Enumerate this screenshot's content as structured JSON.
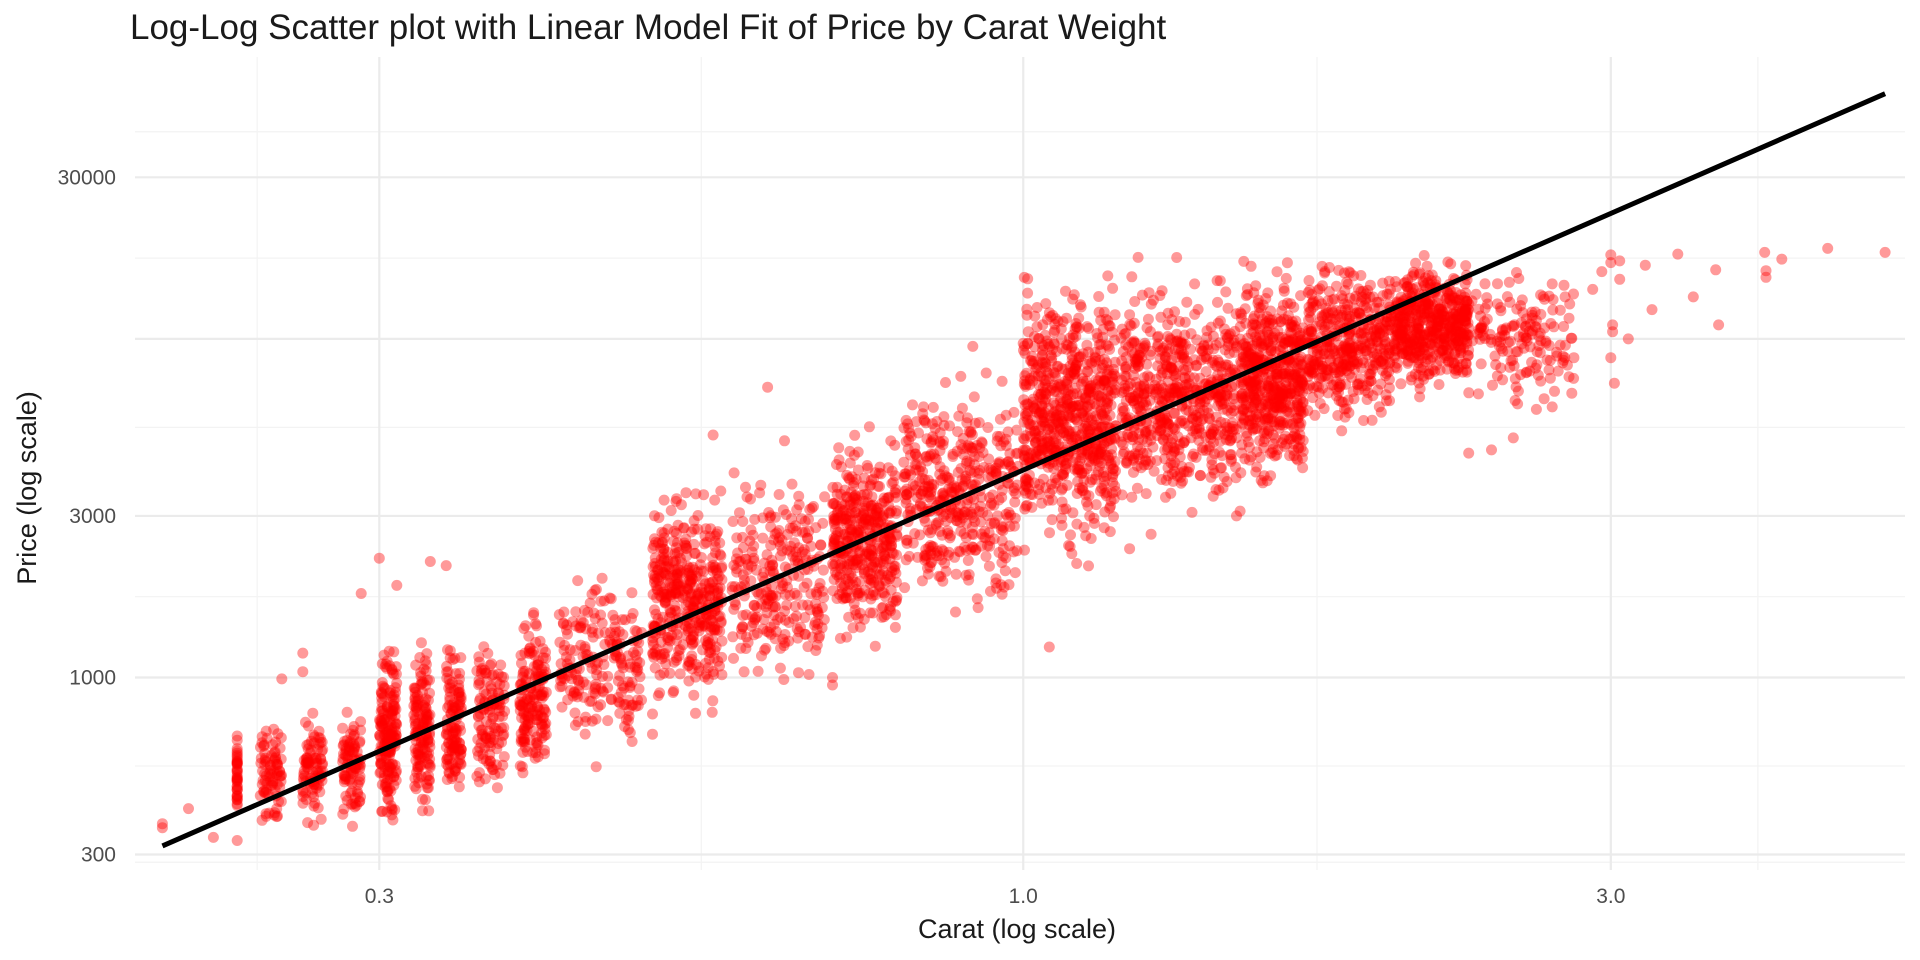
{
  "colors": {
    "points": "#ff0000",
    "fit_line": "#000000",
    "grid_major": "#ebebeb",
    "grid_minor": "#f3f3f3"
  },
  "chart_data": {
    "type": "scatter",
    "title": "Log-Log Scatter plot with Linear Model Fit of Price by Carat Weight",
    "xlabel": "Carat (log scale)",
    "ylabel": "Price (log scale)",
    "x_scale": "log10",
    "y_scale": "log10",
    "xlim": [
      0.19,
      5.2
    ],
    "ylim": [
      270,
      68000
    ],
    "x_ticks": [
      0.3,
      1.0,
      3.0
    ],
    "x_tick_labels": [
      "0.3",
      "1.0",
      "3.0"
    ],
    "y_ticks": [
      300,
      1000,
      3000,
      30000
    ],
    "y_tick_labels": [
      "300",
      "1000",
      "3000",
      "30000"
    ],
    "grid": true,
    "point_alpha": 0.4,
    "series": [
      {
        "type": "scatter",
        "clusters": [
          {
            "x": [
              0.23,
              0.23
            ],
            "y": [
              345,
              740
            ],
            "n": 40
          },
          {
            "x": [
              0.24,
              0.25
            ],
            "y": [
              340,
              800
            ],
            "n": 80
          },
          {
            "x": [
              0.26,
              0.27
            ],
            "y": [
              340,
              860
            ],
            "n": 90
          },
          {
            "x": [
              0.28,
              0.29
            ],
            "y": [
              340,
              880
            ],
            "n": 90
          },
          {
            "x": [
              0.3,
              0.31
            ],
            "y": [
              330,
              1400
            ],
            "n": 180
          },
          {
            "x": [
              0.32,
              0.33
            ],
            "y": [
              330,
              1400
            ],
            "n": 140
          },
          {
            "x": [
              0.34,
              0.35
            ],
            "y": [
              340,
              1450
            ],
            "n": 120
          },
          {
            "x": [
              0.36,
              0.38
            ],
            "y": [
              380,
              1500
            ],
            "n": 120
          },
          {
            "x": [
              0.39,
              0.41
            ],
            "y": [
              430,
              1700
            ],
            "n": 160
          },
          {
            "x": [
              0.42,
              0.49
            ],
            "y": [
              520,
              2400
            ],
            "n": 200
          },
          {
            "x": [
              0.5,
              0.57
            ],
            "y": [
              700,
              4200
            ],
            "n": 420
          },
          {
            "x": [
              0.58,
              0.69
            ],
            "y": [
              800,
              4800
            ],
            "n": 260
          },
          {
            "x": [
              0.7,
              0.79
            ],
            "y": [
              1100,
              5800
            ],
            "n": 400
          },
          {
            "x": [
              0.8,
              0.99
            ],
            "y": [
              1300,
              9000
            ],
            "n": 420
          },
          {
            "x": [
              1.0,
              1.19
            ],
            "y": [
              2000,
              17500
            ],
            "n": 700
          },
          {
            "x": [
              1.2,
              1.49
            ],
            "y": [
              2600,
              18000
            ],
            "n": 600
          },
          {
            "x": [
              1.5,
              1.69
            ],
            "y": [
              3200,
              18500
            ],
            "n": 520
          },
          {
            "x": [
              1.7,
              1.99
            ],
            "y": [
              5000,
              18500
            ],
            "n": 420
          },
          {
            "x": [
              2.0,
              2.3
            ],
            "y": [
              6500,
              18800
            ],
            "n": 500
          },
          {
            "x": [
              2.3,
              2.8
            ],
            "y": [
              5500,
              18500
            ],
            "n": 160
          }
        ],
        "points": [
          {
            "x": 0.2,
            "y": 360
          },
          {
            "x": 0.2,
            "y": 370
          },
          {
            "x": 0.21,
            "y": 410
          },
          {
            "x": 0.22,
            "y": 337
          },
          {
            "x": 0.23,
            "y": 330
          },
          {
            "x": 0.25,
            "y": 990
          },
          {
            "x": 0.26,
            "y": 1180
          },
          {
            "x": 0.26,
            "y": 1040
          },
          {
            "x": 0.3,
            "y": 2250
          },
          {
            "x": 0.29,
            "y": 1770
          },
          {
            "x": 0.31,
            "y": 1870
          },
          {
            "x": 0.33,
            "y": 2200
          },
          {
            "x": 0.34,
            "y": 2140
          },
          {
            "x": 0.62,
            "y": 7200
          },
          {
            "x": 0.56,
            "y": 5200
          },
          {
            "x": 0.64,
            "y": 5000
          },
          {
            "x": 0.75,
            "y": 5500
          },
          {
            "x": 0.91,
            "y": 9500
          },
          {
            "x": 1.05,
            "y": 1230
          },
          {
            "x": 0.7,
            "y": 1000
          },
          {
            "x": 0.7,
            "y": 950
          },
          {
            "x": 0.5,
            "y": 680
          },
          {
            "x": 0.5,
            "y": 780
          },
          {
            "x": 0.45,
            "y": 545
          },
          {
            "x": 1.49,
            "y": 3000
          },
          {
            "x": 1.5,
            "y": 3100
          },
          {
            "x": 1.27,
            "y": 2650
          },
          {
            "x": 1.22,
            "y": 2400
          },
          {
            "x": 2.3,
            "y": 4600
          },
          {
            "x": 2.4,
            "y": 4700
          },
          {
            "x": 2.5,
            "y": 5100
          },
          {
            "x": 2.7,
            "y": 7000
          },
          {
            "x": 2.8,
            "y": 8800
          },
          {
            "x": 2.9,
            "y": 14000
          },
          {
            "x": 2.95,
            "y": 15800
          },
          {
            "x": 3.0,
            "y": 17700
          },
          {
            "x": 3.01,
            "y": 11000
          },
          {
            "x": 3.01,
            "y": 10500
          },
          {
            "x": 3.02,
            "y": 7400
          },
          {
            "x": 3.0,
            "y": 8800
          },
          {
            "x": 3.0,
            "y": 16800
          },
          {
            "x": 3.05,
            "y": 17000
          },
          {
            "x": 3.05,
            "y": 15000
          },
          {
            "x": 3.1,
            "y": 10000
          },
          {
            "x": 3.2,
            "y": 16500
          },
          {
            "x": 3.24,
            "y": 12200
          },
          {
            "x": 3.4,
            "y": 17800
          },
          {
            "x": 3.5,
            "y": 13300
          },
          {
            "x": 3.65,
            "y": 16000
          },
          {
            "x": 3.67,
            "y": 11000
          },
          {
            "x": 4.0,
            "y": 18000
          },
          {
            "x": 4.01,
            "y": 15200
          },
          {
            "x": 4.01,
            "y": 15900
          },
          {
            "x": 4.13,
            "y": 17200
          },
          {
            "x": 4.5,
            "y": 18500
          },
          {
            "x": 5.01,
            "y": 18000
          }
        ]
      },
      {
        "type": "line",
        "x": [
          0.2,
          5.01
        ],
        "y": [
          318,
          53000
        ]
      }
    ]
  }
}
